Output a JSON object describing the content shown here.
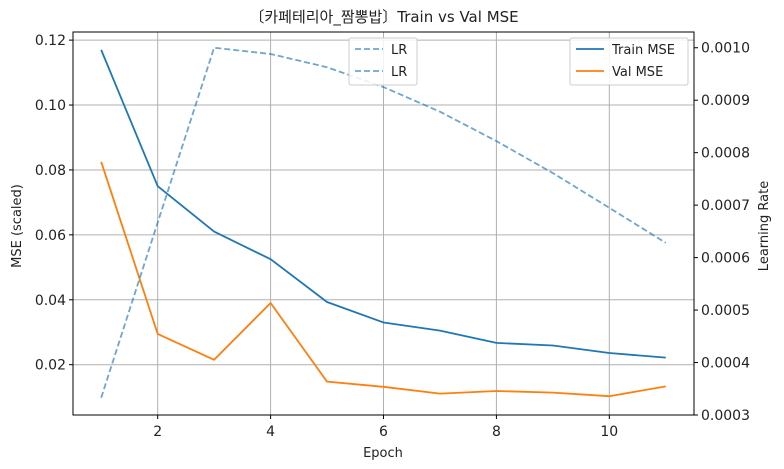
{
  "chart_data": {
    "type": "line",
    "title": "〔카페테리아_짬뽕밥〕Train vs Val MSE",
    "xlabel": "Epoch",
    "ylabel": "MSE (scaled)",
    "y2label": "Learning Rate",
    "x": [
      1,
      2,
      3,
      4,
      5,
      6,
      7,
      8,
      9,
      10,
      11
    ],
    "xlim": [
      0.5,
      11.5
    ],
    "ylim": [
      0.0045,
      0.1225
    ],
    "y2lim": [
      0.0003,
      0.00103
    ],
    "xticks": [
      2,
      4,
      6,
      8,
      10
    ],
    "yticks": [
      0.02,
      0.04,
      0.06,
      0.08,
      0.1,
      0.12
    ],
    "y2ticks": [
      0.0003,
      0.0004,
      0.0005,
      0.0006,
      0.0007,
      0.0008,
      0.0009,
      0.001
    ],
    "xtick_labels": [
      "2",
      "4",
      "6",
      "8",
      "10"
    ],
    "ytick_labels": [
      "0.02",
      "0.04",
      "0.06",
      "0.08",
      "0.10",
      "0.12"
    ],
    "y2tick_labels": [
      "0.0003",
      "0.0004",
      "0.0005",
      "0.0006",
      "0.0007",
      "0.0008",
      "0.0009",
      "0.0010"
    ],
    "grid": true,
    "series": [
      {
        "name": "Train MSE",
        "axis": "left",
        "color": "#1f77b4",
        "style": "solid",
        "values": [
          0.117,
          0.075,
          0.061,
          0.0525,
          0.0393,
          0.033,
          0.0305,
          0.0267,
          0.0259,
          0.0236,
          0.0222
        ]
      },
      {
        "name": "Val MSE",
        "axis": "left",
        "color": "#ff7f0e",
        "style": "solid",
        "values": [
          0.0825,
          0.0295,
          0.0215,
          0.039,
          0.0148,
          0.0132,
          0.0111,
          0.0119,
          0.0114,
          0.0103,
          0.0133
        ]
      },
      {
        "name": "LR",
        "axis": "right",
        "color": "#1f77b4",
        "style": "dashed",
        "values": [
          0.000333,
          0.000667,
          0.001,
          0.000988,
          0.000963,
          0.000925,
          0.000878,
          0.000822,
          0.000761,
          0.000695,
          0.000628
        ]
      }
    ],
    "legends": [
      {
        "placement": "top-center",
        "entries": [
          {
            "label": "LR",
            "color": "#1f77b4",
            "style": "dashed"
          },
          {
            "label": "LR",
            "color": "#1f77b4",
            "style": "dashed"
          }
        ]
      },
      {
        "placement": "top-right",
        "entries": [
          {
            "label": "Train MSE",
            "color": "#1f77b4",
            "style": "solid"
          },
          {
            "label": "Val MSE",
            "color": "#ff7f0e",
            "style": "solid"
          }
        ]
      }
    ]
  }
}
